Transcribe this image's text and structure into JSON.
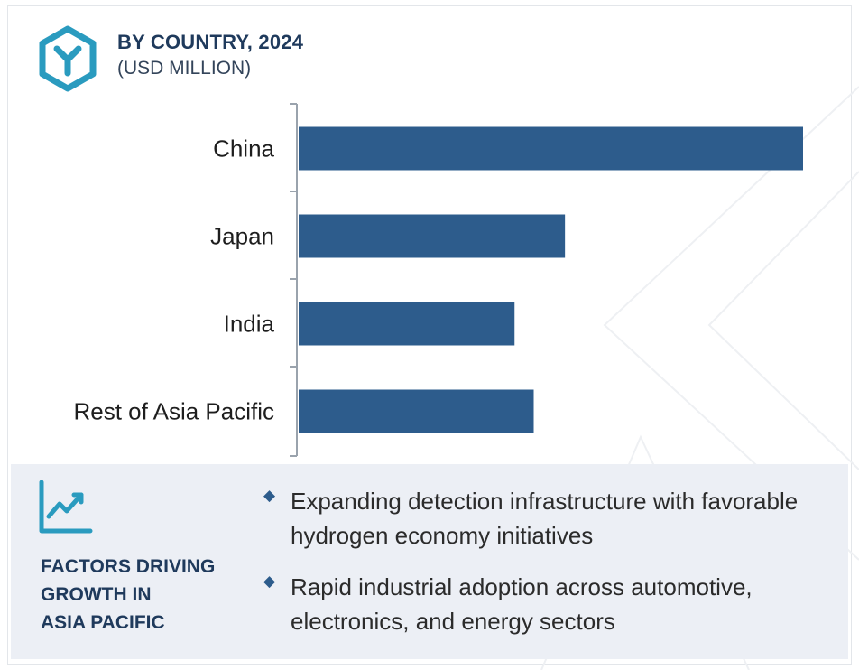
{
  "header": {
    "title": "BY COUNTRY, 2024",
    "subtitle": "(USD MILLION)",
    "logo_icon": "hexagon-y-logo-icon"
  },
  "colors": {
    "bar": "#2d5c8c",
    "accent": "#2a9bbf",
    "heading": "#1f3a5c",
    "footer_bg": "#eceff5"
  },
  "chart_data": {
    "type": "bar",
    "orientation": "horizontal",
    "title": "BY COUNTRY, 2024",
    "subtitle": "(USD MILLION)",
    "categories": [
      "China",
      "Japan",
      "India",
      "Rest of Asia Pacific"
    ],
    "values": [
      100,
      52.8,
      42.8,
      46.6
    ],
    "xlim": [
      0,
      100
    ],
    "value_axis_labels_shown": false,
    "grid": false,
    "legend": "none"
  },
  "footer": {
    "heading_lines": [
      "FACTORS DRIVING",
      "GROWTH IN",
      "ASIA PACIFIC"
    ],
    "icon": "trend-chart-icon",
    "bullets": [
      "Expanding detection infrastructure with favorable hydrogen economy initiatives",
      "Rapid industrial adoption across automotive, electronics, and energy sectors"
    ]
  }
}
